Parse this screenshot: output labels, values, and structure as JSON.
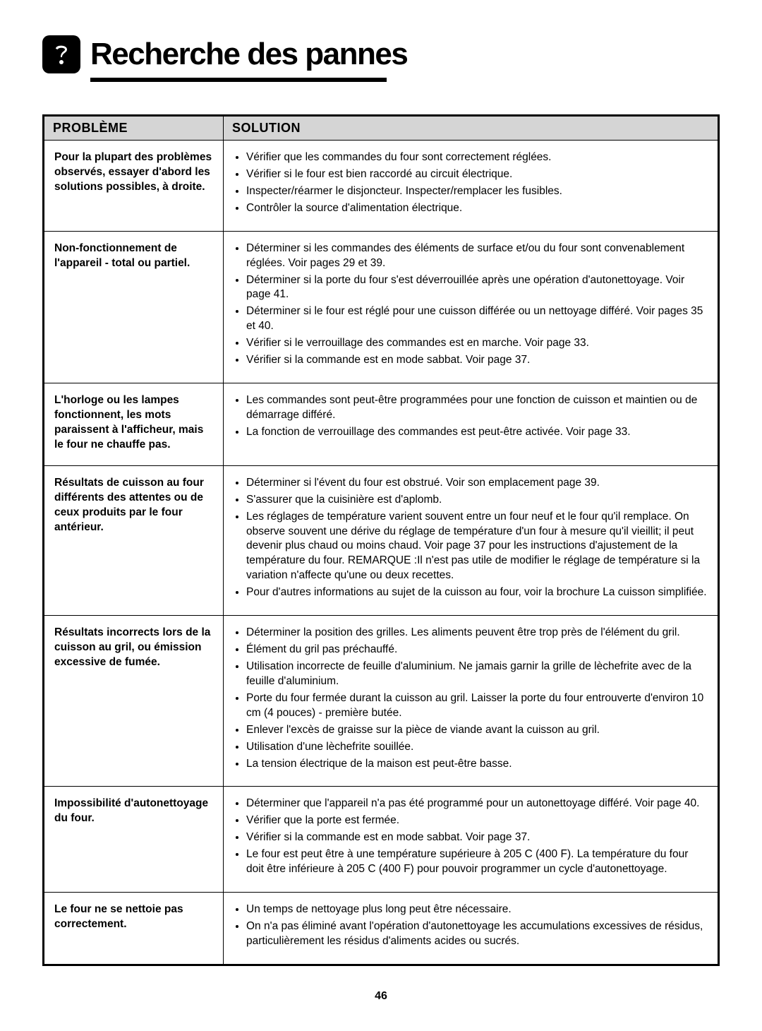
{
  "page": {
    "title": "Recherche des pannes",
    "page_number": "46",
    "colors": {
      "header_bg": "#d5d5d5",
      "border": "#000000",
      "text": "#000000",
      "background": "#ffffff"
    },
    "typography": {
      "title_fontsize": 44,
      "title_weight": 900,
      "header_fontsize": 18,
      "body_fontsize": 15.5
    }
  },
  "table": {
    "headers": {
      "problem": "PROBLÈME",
      "solution": "SOLUTION"
    },
    "rows": [
      {
        "problem": "Pour la plupart des problèmes observés, essayer d'abord les solutions possibles, à droite.",
        "solutions": [
          "Vérifier que les commandes du four sont correctement réglées.",
          "Vérifier si le four est bien raccordé au circuit électrique.",
          "Inspecter/réarmer le disjoncteur. Inspecter/remplacer les fusibles.",
          "Contrôler la source d'alimentation électrique."
        ]
      },
      {
        "problem": "Non-fonctionnement de l'appareil - total ou partiel.",
        "solutions": [
          "Déterminer si les commandes des éléments de surface et/ou du four sont convenablement réglées. Voir pages 29 et 39.",
          "Déterminer si la porte du four s'est déverrouillée après une opération d'autonettoyage. Voir page 41.",
          "Déterminer si le four est réglé pour une cuisson différée ou un nettoyage différé. Voir pages 35 et 40.",
          "Vérifier si le verrouillage des commandes est en marche. Voir page 33.",
          "Vérifier si la commande est en mode sabbat. Voir page 37."
        ]
      },
      {
        "problem": "L'horloge ou les lampes fonctionnent, les mots paraissent  à l'afficheur, mais le four ne chauffe pas.",
        "solutions": [
          "Les commandes sont peut-être programmées pour une fonction de cuisson et maintien ou de démarrage différé.",
          "La fonction de verrouillage des commandes est peut-être activée. Voir page 33."
        ]
      },
      {
        "problem": "Résultats de cuisson au four différents des attentes ou de ceux produits par le four antérieur.",
        "solutions": [
          "Déterminer si l'évent du four est obstrué. Voir son emplacement page 39.",
          "S'assurer que la cuisinière est d'aplomb.",
          "Les réglages de température varient souvent entre un four neuf et le four qu'il remplace. On observe souvent une dérive du réglage de température d'un four à mesure qu'il vieillit; il peut devenir plus chaud ou moins chaud. Voir page 37 pour les instructions d'ajustement de la température du four. REMARQUE :Il n'est pas utile de modifier le réglage de température si la variation n'affecte qu'une ou deux recettes.",
          "Pour d'autres informations au sujet de la cuisson au four, voir la brochure La cuisson simplifiée."
        ]
      },
      {
        "problem": "Résultats incorrects lors de la cuisson au gril, ou émission excessive de fumée.",
        "solutions": [
          "Déterminer la position des grilles. Les aliments peuvent être trop près de l'élément du gril.",
          "Élément du gril pas préchauffé.",
          "Utilisation incorrecte de feuille d'aluminium. Ne jamais garnir la grille de lèchefrite avec de la feuille d'aluminium.",
          "Porte du four fermée durant la cuisson au gril. Laisser la porte du four entrouverte d'environ 10 cm (4 pouces) - première butée.",
          "Enlever l'excès de graisse sur la pièce de viande avant la cuisson au gril.",
          "Utilisation d'une lèchefrite souillée.",
          "La tension électrique de la maison est peut-être basse."
        ]
      },
      {
        "problem": "Impossibilité d'autonettoyage du four.",
        "solutions": [
          "Déterminer que l'appareil n'a pas été programmé pour un autonettoyage différé. Voir page 40.",
          "Vérifier que la porte est fermée.",
          "Vérifier si la commande est en mode sabbat. Voir page 37.",
          "Le four est peut être à une température supérieure à 205  C (400  F). La température du four doit être inférieure à 205  C (400  F) pour pouvoir programmer un cycle d'autonettoyage."
        ]
      },
      {
        "problem": "Le four ne se nettoie pas correctement.",
        "solutions": [
          "Un temps de nettoyage plus long peut être nécessaire.",
          "On n'a pas éliminé avant l'opération d'autonettoyage les accumulations excessives de résidus, particulièrement les résidus d'aliments acides ou sucrés."
        ]
      }
    ]
  }
}
